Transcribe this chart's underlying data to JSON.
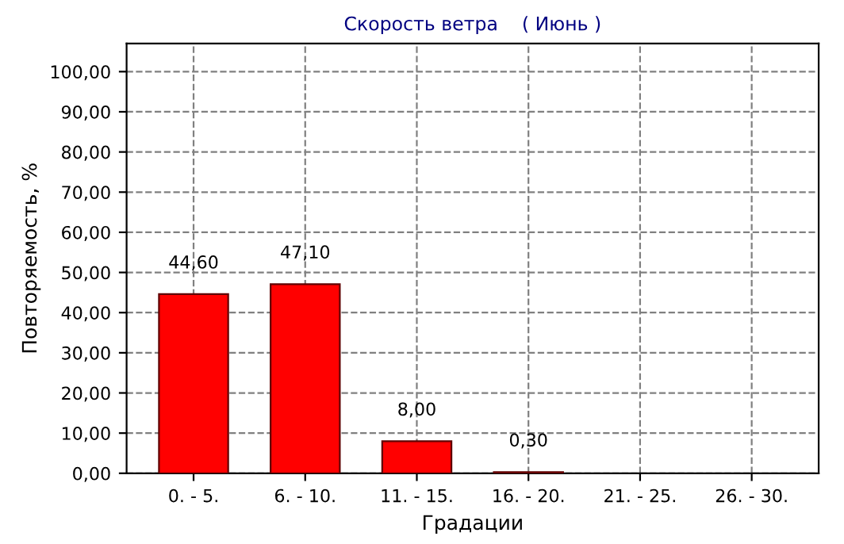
{
  "chart_data": {
    "type": "bar",
    "title": "Скорость ветра    ( Июнь )",
    "xlabel": "Градации",
    "ylabel": "Повторяемость, %",
    "categories": [
      "0. - 5.",
      "6. - 10.",
      "11. - 15.",
      "16. - 20.",
      "21. - 25.",
      "26. - 30."
    ],
    "values": [
      44.6,
      47.1,
      8.0,
      0.3,
      0,
      0
    ],
    "value_labels": [
      "44,60",
      "47,10",
      "8,00",
      "0,30",
      null,
      null
    ],
    "color": "#ff0000",
    "ylim": [
      0,
      107
    ],
    "yticks": [
      {
        "value": 0,
        "label": "0,00"
      },
      {
        "value": 10,
        "label": "10,00"
      },
      {
        "value": 20,
        "label": "20,00"
      },
      {
        "value": 30,
        "label": "30,00"
      },
      {
        "value": 40,
        "label": "40,00"
      },
      {
        "value": 50,
        "label": "50,00"
      },
      {
        "value": 60,
        "label": "60,00"
      },
      {
        "value": 70,
        "label": "70,00"
      },
      {
        "value": 80,
        "label": "80,00"
      },
      {
        "value": 90,
        "label": "90,00"
      },
      {
        "value": 100,
        "label": "100,00"
      }
    ],
    "grid": true,
    "legend": false
  }
}
